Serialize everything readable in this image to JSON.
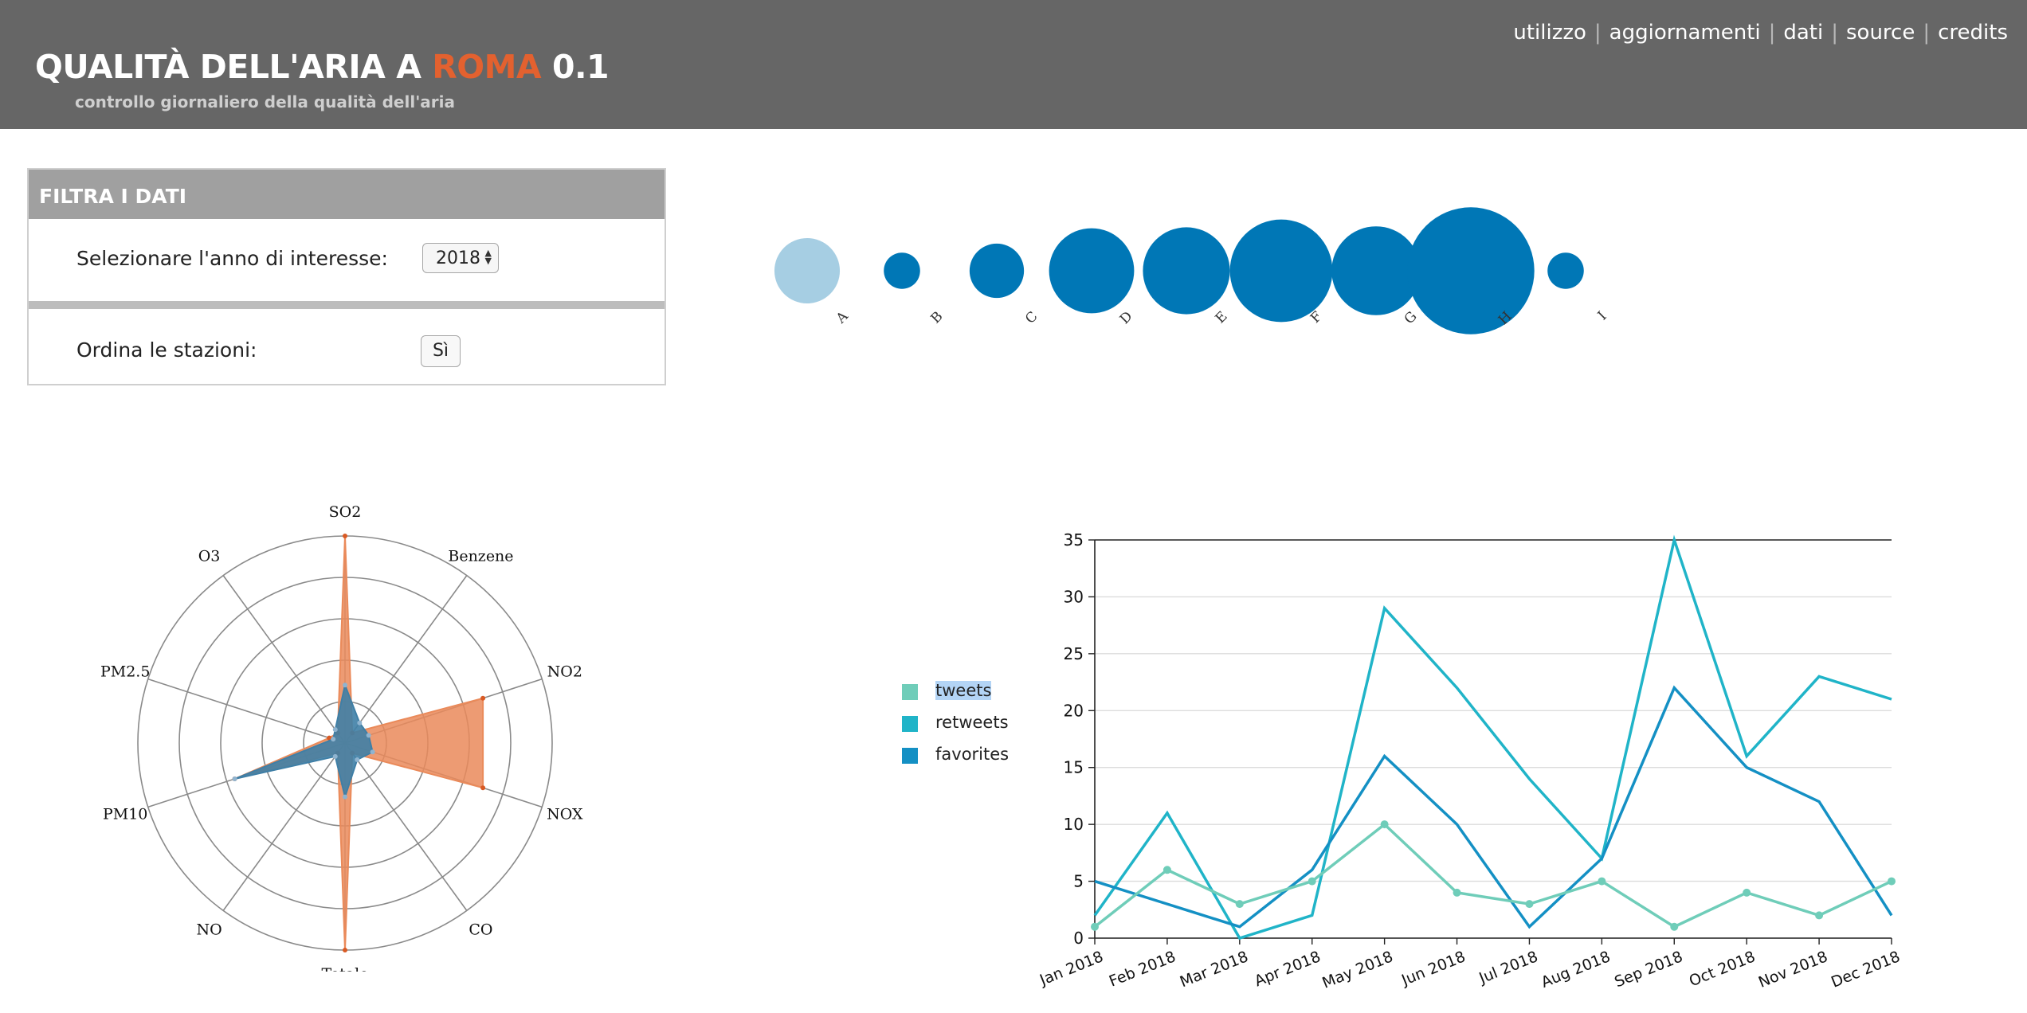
{
  "header": {
    "title_before": "QUALITÀ DELL'ARIA A ",
    "title_accent": "ROMA",
    "title_after": " 0.1",
    "subtitle": "controllo giornaliero della qualità dell'aria",
    "nav": [
      "utilizzo",
      "aggiornamenti",
      "dati",
      "source",
      "credits"
    ]
  },
  "filter": {
    "title": "FILTRA I DATI",
    "year_label": "Selezionare l'anno di interesse:",
    "year_value": "2018",
    "sort_label": "Ordina le stazioni:",
    "sort_button": "Sì"
  },
  "colors": {
    "header_bg": "#666666",
    "accent": "#e3612f",
    "bubble_dark": "#0077b6",
    "bubble_light": "#a6cee3",
    "tweets": "#6fcdb9",
    "retweets": "#20b4c8",
    "favorites": "#1490c4",
    "radar_orange": "#ea8a5a",
    "radar_blue": "#3f7fa6"
  },
  "chart_data": [
    {
      "type": "scatter",
      "name": "stations",
      "categories": [
        "A",
        "B",
        "C",
        "D",
        "E",
        "F",
        "G",
        "H",
        "I"
      ],
      "values": [
        1.3,
        0.4,
        0.9,
        2.2,
        2.3,
        3.2,
        2.4,
        4.9,
        0.4
      ],
      "highlighted": "A"
    },
    {
      "type": "radar",
      "axes": [
        "SO2",
        "Benzene",
        "NO2",
        "NOX",
        "CO",
        "Totale",
        "NO",
        "PM10",
        "PM2.5",
        "O3"
      ],
      "rmax": 5,
      "series": [
        {
          "values": [
            5.0,
            0.3,
            3.5,
            3.5,
            0.3,
            5.0,
            0.3,
            2.8,
            0.4,
            0.3
          ],
          "color": "#ea8a5a"
        },
        {
          "values": [
            1.4,
            0.6,
            0.6,
            0.7,
            0.5,
            1.3,
            0.4,
            2.8,
            0.3,
            0.4
          ],
          "color": "#3f7fa6"
        }
      ]
    },
    {
      "type": "line",
      "x": [
        "Jan 2018",
        "Feb 2018",
        "Mar 2018",
        "Apr 2018",
        "May 2018",
        "Jun 2018",
        "Jul 2018",
        "Aug 2018",
        "Sep 2018",
        "Oct 2018",
        "Nov 2018",
        "Dec 2018"
      ],
      "ylim": [
        0,
        35
      ],
      "yticks": [
        0,
        5,
        10,
        15,
        20,
        25,
        30,
        35
      ],
      "series": [
        {
          "name": "tweets",
          "color": "#6fcdb9",
          "values": [
            1,
            6,
            3,
            5,
            10,
            4,
            3,
            5,
            1,
            4,
            2,
            5
          ]
        },
        {
          "name": "retweets",
          "color": "#20b4c8",
          "values": [
            2,
            11,
            0,
            2,
            29,
            22,
            14,
            7,
            35,
            16,
            23,
            21
          ]
        },
        {
          "name": "favorites",
          "color": "#1490c4",
          "values": [
            5,
            3,
            1,
            6,
            16,
            10,
            1,
            7,
            22,
            15,
            12,
            2
          ]
        }
      ],
      "legend_selected": "tweets"
    }
  ]
}
